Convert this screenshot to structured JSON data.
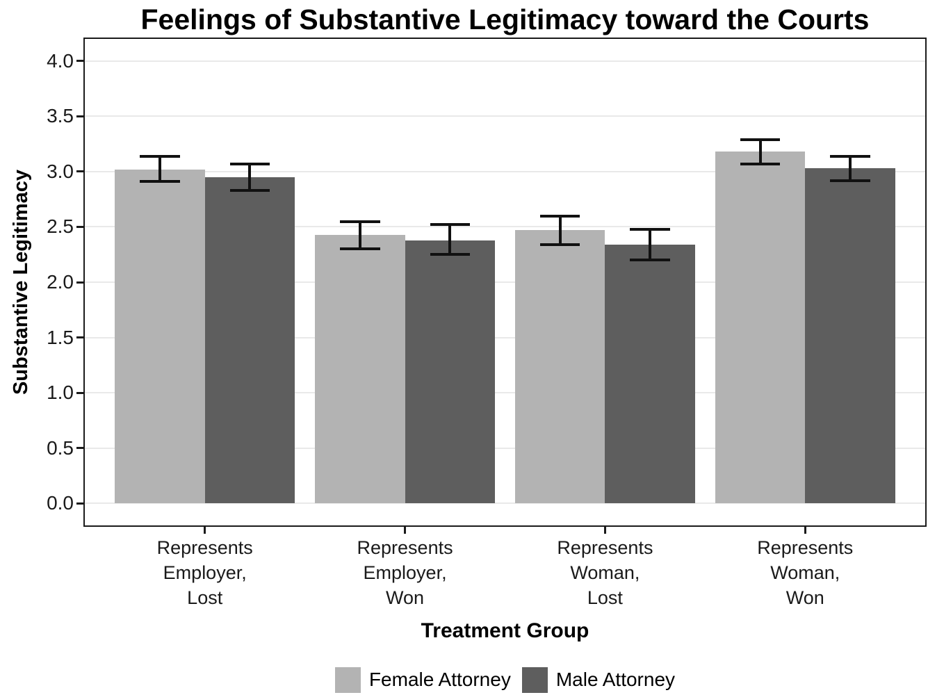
{
  "chart_data": {
    "type": "bar",
    "title": "Feelings of Substantive Legitimacy toward the Courts",
    "xlabel": "Treatment Group",
    "ylabel": "Substantive Legitimacy",
    "categories": [
      {
        "lines": [
          "Represents",
          "Employer,",
          "Lost"
        ]
      },
      {
        "lines": [
          "Represents",
          "Employer,",
          "Won"
        ]
      },
      {
        "lines": [
          "Represents",
          "Woman,",
          "Lost"
        ]
      },
      {
        "lines": [
          "Represents",
          "Woman,",
          "Won"
        ]
      }
    ],
    "series": [
      {
        "name": "Female Attorney",
        "color": "#b3b3b3",
        "values": [
          3.02,
          2.43,
          2.47,
          3.18
        ],
        "ci_low": [
          2.91,
          2.3,
          2.34,
          3.07
        ],
        "ci_high": [
          3.14,
          2.55,
          2.6,
          3.29
        ]
      },
      {
        "name": "Male Attorney",
        "color": "#5e5e5e",
        "values": [
          2.95,
          2.38,
          2.34,
          3.03
        ],
        "ci_low": [
          2.83,
          2.25,
          2.2,
          2.92
        ],
        "ci_high": [
          3.07,
          2.52,
          2.48,
          3.14
        ]
      }
    ],
    "ylim": [
      0,
      4
    ],
    "yticks": [
      {
        "value": 0.0,
        "label": "0.0"
      },
      {
        "value": 0.5,
        "label": "0.5"
      },
      {
        "value": 1.0,
        "label": "1.0"
      },
      {
        "value": 1.5,
        "label": "1.5"
      },
      {
        "value": 2.0,
        "label": "2.0"
      },
      {
        "value": 2.5,
        "label": "2.5"
      },
      {
        "value": 3.0,
        "label": "3.0"
      },
      {
        "value": 3.5,
        "label": "3.5"
      },
      {
        "value": 4.0,
        "label": "4.0"
      }
    ],
    "legend_position": "bottom",
    "grid": "horizontal-major-only",
    "error_bars": true,
    "colors": {
      "gridline": "#e9e9e9",
      "panel_border": "#1a1a1a",
      "error_bar": "#111111",
      "text": "#000000",
      "background": "#ffffff"
    }
  }
}
